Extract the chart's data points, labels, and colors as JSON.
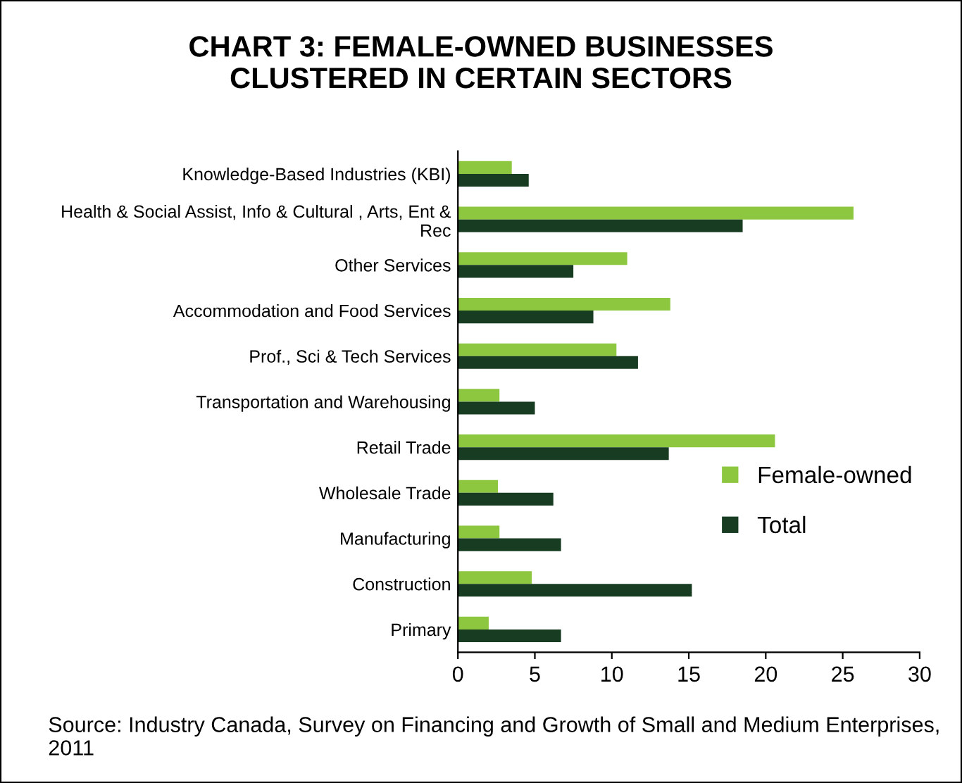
{
  "chart_data": {
    "type": "bar",
    "orientation": "horizontal",
    "title": "CHART 3: FEMALE-OWNED BUSINESSES\nCLUSTERED IN CERTAIN SECTORS",
    "categories": [
      "Knowledge-Based Industries (KBI)",
      "Health & Social Assist, Info & Cultural , Arts, Ent &\nRec",
      "Other Services",
      "Accommodation and Food Services",
      "Prof., Sci & Tech Services",
      "Transportation and Warehousing",
      "Retail Trade",
      "Wholesale Trade",
      "Manufacturing",
      "Construction",
      "Primary"
    ],
    "series": [
      {
        "name": "Female-owned",
        "color": "#8dc63f",
        "values": [
          3.5,
          25.7,
          11.0,
          13.8,
          10.3,
          2.7,
          20.6,
          2.6,
          2.7,
          4.8,
          2.0
        ]
      },
      {
        "name": "Total",
        "color": "#173c22",
        "values": [
          4.6,
          18.5,
          7.5,
          8.8,
          11.7,
          5.0,
          13.7,
          6.2,
          6.7,
          15.2,
          6.7
        ]
      }
    ],
    "xlim": [
      0,
      30
    ],
    "xticks": [
      0,
      5,
      10,
      15,
      20,
      25,
      30
    ],
    "grid": false,
    "legend": "right",
    "annotations": [
      "Source: Industry Canada, Survey on Financing and Growth of Small and Medium Enterprises, 2011"
    ]
  }
}
